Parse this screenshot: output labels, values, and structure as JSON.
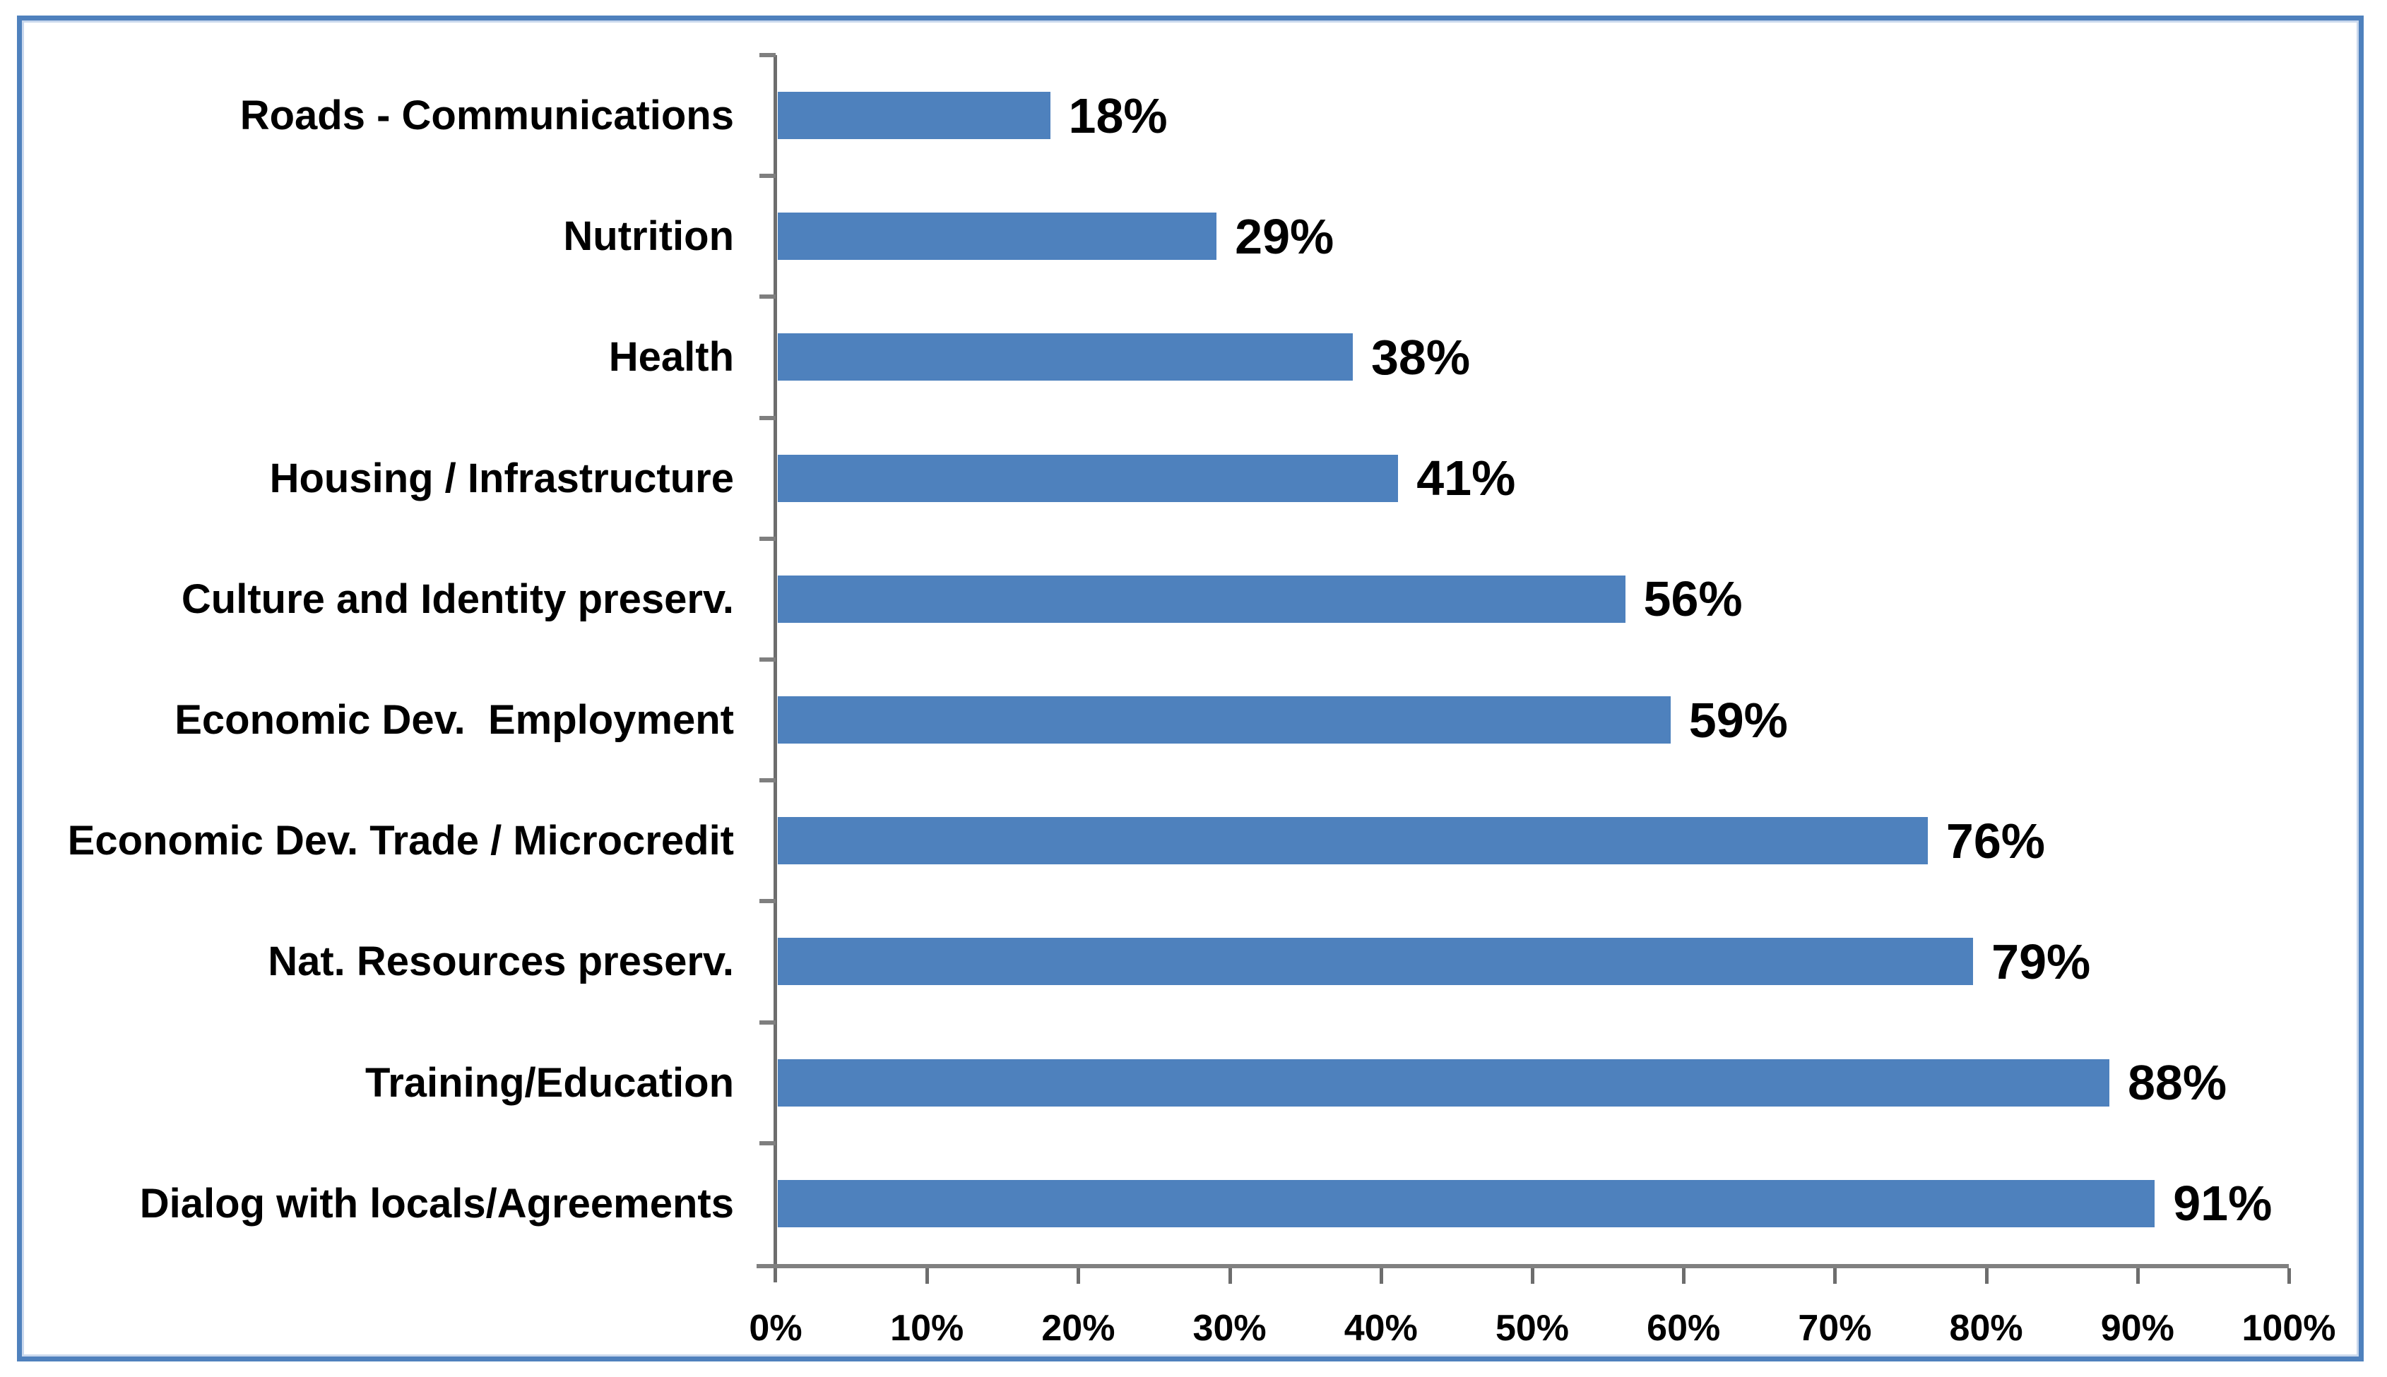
{
  "chart_data": {
    "type": "bar",
    "orientation": "horizontal",
    "title": "",
    "xlabel": "",
    "ylabel": "",
    "categories": [
      "Roads - Communications",
      "Nutrition",
      "Health",
      "Housing / Infrastructure",
      "Culture and Identity preserv.",
      "Economic Dev.  Employment",
      "Economic Dev. Trade / Microcredit",
      "Nat. Resources preserv.",
      "Training/Education",
      "Dialog with locals/Agreements"
    ],
    "values": [
      18,
      29,
      38,
      41,
      56,
      59,
      76,
      79,
      88,
      91
    ],
    "value_labels": [
      "18%",
      "29%",
      "38%",
      "41%",
      "56%",
      "59%",
      "76%",
      "79%",
      "88%",
      "91%"
    ],
    "xlim": [
      0,
      100
    ],
    "x_tick_step": 10,
    "x_tick_labels": [
      "0%",
      "10%",
      "20%",
      "30%",
      "40%",
      "50%",
      "60%",
      "70%",
      "80%",
      "90%",
      "100%"
    ],
    "grid": false,
    "legend": false,
    "data_labels_position": "outside-end",
    "bar_color": "#4e81bd",
    "frame_border_color": "#4f81bd",
    "frame_inner_line_color": "#c9d8ed",
    "x_axis_color": "#808080",
    "y_axis_color": "#6d6d6d",
    "tick_color": "#7f7f7f",
    "text_color": "#000000"
  }
}
